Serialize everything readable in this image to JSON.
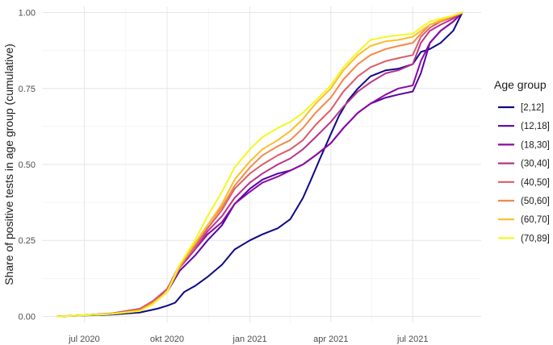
{
  "chart_data": {
    "type": "line",
    "title": "",
    "xlabel": "",
    "ylabel": "Share of positive tests in age group (cumulative)",
    "x_axis": {
      "type": "date",
      "range": [
        "2020-05-15",
        "2021-09-15"
      ],
      "ticks": [
        {
          "date": "2020-07-01",
          "label": "jul 2020"
        },
        {
          "date": "2020-10-01",
          "label": "okt 2020"
        },
        {
          "date": "2021-01-01",
          "label": "jan 2021"
        },
        {
          "date": "2021-04-01",
          "label": "apr 2021"
        },
        {
          "date": "2021-07-01",
          "label": "jul 2021"
        }
      ]
    },
    "y_axis": {
      "range": [
        -0.02,
        1.02
      ],
      "ticks": [
        {
          "value": 0,
          "label": "0.00"
        },
        {
          "value": 0.25,
          "label": "0.25"
        },
        {
          "value": 0.5,
          "label": "0.50"
        },
        {
          "value": 0.75,
          "label": "0.75"
        },
        {
          "value": 1,
          "label": "1.00"
        }
      ]
    },
    "grid": true,
    "legend": {
      "title": "Age group",
      "position": "right"
    },
    "series": [
      {
        "name": "[2,12]",
        "color": "#0d0887",
        "points": [
          [
            "2020-06-01",
            0
          ],
          [
            "2020-07-01",
            0.003
          ],
          [
            "2020-08-01",
            0.006
          ],
          [
            "2020-09-01",
            0.013
          ],
          [
            "2020-09-20",
            0.025
          ],
          [
            "2020-10-01",
            0.035
          ],
          [
            "2020-10-10",
            0.045
          ],
          [
            "2020-10-20",
            0.08
          ],
          [
            "2020-11-01",
            0.1
          ],
          [
            "2020-11-15",
            0.13
          ],
          [
            "2020-12-01",
            0.17
          ],
          [
            "2020-12-15",
            0.22
          ],
          [
            "2021-01-01",
            0.25
          ],
          [
            "2021-01-15",
            0.27
          ],
          [
            "2021-02-01",
            0.29
          ],
          [
            "2021-02-15",
            0.32
          ],
          [
            "2021-03-01",
            0.39
          ],
          [
            "2021-03-10",
            0.45
          ],
          [
            "2021-03-20",
            0.52
          ],
          [
            "2021-04-01",
            0.6
          ],
          [
            "2021-04-10",
            0.66
          ],
          [
            "2021-04-20",
            0.71
          ],
          [
            "2021-05-01",
            0.75
          ],
          [
            "2021-05-15",
            0.79
          ],
          [
            "2021-06-01",
            0.81
          ],
          [
            "2021-06-15",
            0.815
          ],
          [
            "2021-07-01",
            0.83
          ],
          [
            "2021-07-10",
            0.87
          ],
          [
            "2021-07-20",
            0.88
          ],
          [
            "2021-08-01",
            0.9
          ],
          [
            "2021-08-15",
            0.94
          ],
          [
            "2021-08-25",
            1
          ]
        ]
      },
      {
        "name": "(12,18]",
        "color": "#5502a3",
        "points": [
          [
            "2020-06-01",
            0
          ],
          [
            "2020-07-01",
            0.004
          ],
          [
            "2020-08-01",
            0.008
          ],
          [
            "2020-09-01",
            0.02
          ],
          [
            "2020-09-15",
            0.04
          ],
          [
            "2020-10-01",
            0.08
          ],
          [
            "2020-10-15",
            0.15
          ],
          [
            "2020-11-01",
            0.2
          ],
          [
            "2020-11-15",
            0.25
          ],
          [
            "2020-12-01",
            0.3
          ],
          [
            "2020-12-15",
            0.37
          ],
          [
            "2021-01-01",
            0.42
          ],
          [
            "2021-01-15",
            0.45
          ],
          [
            "2021-02-01",
            0.47
          ],
          [
            "2021-02-15",
            0.48
          ],
          [
            "2021-03-01",
            0.5
          ],
          [
            "2021-03-15",
            0.53
          ],
          [
            "2021-04-01",
            0.57
          ],
          [
            "2021-04-15",
            0.62
          ],
          [
            "2021-05-01",
            0.67
          ],
          [
            "2021-05-15",
            0.7
          ],
          [
            "2021-06-01",
            0.72
          ],
          [
            "2021-06-15",
            0.73
          ],
          [
            "2021-07-01",
            0.74
          ],
          [
            "2021-07-10",
            0.8
          ],
          [
            "2021-07-20",
            0.9
          ],
          [
            "2021-08-01",
            0.94
          ],
          [
            "2021-08-15",
            0.97
          ],
          [
            "2021-08-25",
            1
          ]
        ]
      },
      {
        "name": "(18,30]",
        "color": "#8a09a5",
        "points": [
          [
            "2020-06-01",
            0
          ],
          [
            "2020-07-01",
            0.004
          ],
          [
            "2020-08-01",
            0.009
          ],
          [
            "2020-09-01",
            0.022
          ],
          [
            "2020-09-15",
            0.045
          ],
          [
            "2020-10-01",
            0.09
          ],
          [
            "2020-10-15",
            0.16
          ],
          [
            "2020-11-01",
            0.22
          ],
          [
            "2020-11-15",
            0.27
          ],
          [
            "2020-12-01",
            0.31
          ],
          [
            "2020-12-15",
            0.37
          ],
          [
            "2021-01-01",
            0.41
          ],
          [
            "2021-01-15",
            0.44
          ],
          [
            "2021-02-01",
            0.46
          ],
          [
            "2021-02-15",
            0.48
          ],
          [
            "2021-03-01",
            0.5
          ],
          [
            "2021-03-15",
            0.53
          ],
          [
            "2021-04-01",
            0.57
          ],
          [
            "2021-04-15",
            0.62
          ],
          [
            "2021-05-01",
            0.67
          ],
          [
            "2021-05-15",
            0.7
          ],
          [
            "2021-06-01",
            0.73
          ],
          [
            "2021-06-15",
            0.75
          ],
          [
            "2021-07-01",
            0.76
          ],
          [
            "2021-07-10",
            0.84
          ],
          [
            "2021-07-20",
            0.9
          ],
          [
            "2021-08-01",
            0.94
          ],
          [
            "2021-08-15",
            0.97
          ],
          [
            "2021-08-25",
            1
          ]
        ]
      },
      {
        "name": "(30,40]",
        "color": "#b93289",
        "points": [
          [
            "2020-06-01",
            0
          ],
          [
            "2020-07-01",
            0.004
          ],
          [
            "2020-08-01",
            0.01
          ],
          [
            "2020-09-01",
            0.025
          ],
          [
            "2020-09-15",
            0.05
          ],
          [
            "2020-10-01",
            0.09
          ],
          [
            "2020-10-15",
            0.16
          ],
          [
            "2020-11-01",
            0.22
          ],
          [
            "2020-11-15",
            0.28
          ],
          [
            "2020-12-01",
            0.33
          ],
          [
            "2020-12-15",
            0.39
          ],
          [
            "2021-01-01",
            0.44
          ],
          [
            "2021-01-15",
            0.47
          ],
          [
            "2021-02-01",
            0.5
          ],
          [
            "2021-02-15",
            0.52
          ],
          [
            "2021-03-01",
            0.55
          ],
          [
            "2021-03-15",
            0.59
          ],
          [
            "2021-04-01",
            0.64
          ],
          [
            "2021-04-15",
            0.69
          ],
          [
            "2021-05-01",
            0.74
          ],
          [
            "2021-05-15",
            0.77
          ],
          [
            "2021-06-01",
            0.8
          ],
          [
            "2021-06-15",
            0.81
          ],
          [
            "2021-07-01",
            0.83
          ],
          [
            "2021-07-10",
            0.9
          ],
          [
            "2021-07-20",
            0.94
          ],
          [
            "2021-08-01",
            0.96
          ],
          [
            "2021-08-15",
            0.98
          ],
          [
            "2021-08-25",
            1
          ]
        ]
      },
      {
        "name": "(40,50]",
        "color": "#db5c68",
        "points": [
          [
            "2020-06-01",
            0
          ],
          [
            "2020-07-01",
            0.004
          ],
          [
            "2020-08-01",
            0.01
          ],
          [
            "2020-09-01",
            0.025
          ],
          [
            "2020-09-15",
            0.05
          ],
          [
            "2020-10-01",
            0.09
          ],
          [
            "2020-10-15",
            0.17
          ],
          [
            "2020-11-01",
            0.23
          ],
          [
            "2020-11-15",
            0.29
          ],
          [
            "2020-12-01",
            0.35
          ],
          [
            "2020-12-15",
            0.42
          ],
          [
            "2021-01-01",
            0.47
          ],
          [
            "2021-01-15",
            0.5
          ],
          [
            "2021-02-01",
            0.53
          ],
          [
            "2021-02-15",
            0.55
          ],
          [
            "2021-03-01",
            0.58
          ],
          [
            "2021-03-15",
            0.63
          ],
          [
            "2021-04-01",
            0.68
          ],
          [
            "2021-04-15",
            0.74
          ],
          [
            "2021-05-01",
            0.79
          ],
          [
            "2021-05-15",
            0.82
          ],
          [
            "2021-06-01",
            0.84
          ],
          [
            "2021-06-15",
            0.85
          ],
          [
            "2021-07-01",
            0.86
          ],
          [
            "2021-07-10",
            0.92
          ],
          [
            "2021-07-20",
            0.95
          ],
          [
            "2021-08-01",
            0.97
          ],
          [
            "2021-08-15",
            0.985
          ],
          [
            "2021-08-25",
            1
          ]
        ]
      },
      {
        "name": "(50,60]",
        "color": "#f48849",
        "points": [
          [
            "2020-06-01",
            0
          ],
          [
            "2020-07-01",
            0.004
          ],
          [
            "2020-08-01",
            0.008
          ],
          [
            "2020-09-01",
            0.02
          ],
          [
            "2020-09-15",
            0.045
          ],
          [
            "2020-10-01",
            0.08
          ],
          [
            "2020-10-15",
            0.16
          ],
          [
            "2020-11-01",
            0.24
          ],
          [
            "2020-11-15",
            0.3
          ],
          [
            "2020-12-01",
            0.36
          ],
          [
            "2020-12-15",
            0.43
          ],
          [
            "2021-01-01",
            0.49
          ],
          [
            "2021-01-15",
            0.53
          ],
          [
            "2021-02-01",
            0.56
          ],
          [
            "2021-02-15",
            0.58
          ],
          [
            "2021-03-01",
            0.62
          ],
          [
            "2021-03-15",
            0.67
          ],
          [
            "2021-04-01",
            0.72
          ],
          [
            "2021-04-15",
            0.78
          ],
          [
            "2021-05-01",
            0.83
          ],
          [
            "2021-05-15",
            0.86
          ],
          [
            "2021-06-01",
            0.88
          ],
          [
            "2021-06-15",
            0.89
          ],
          [
            "2021-07-01",
            0.9
          ],
          [
            "2021-07-10",
            0.93
          ],
          [
            "2021-07-20",
            0.96
          ],
          [
            "2021-08-01",
            0.97
          ],
          [
            "2021-08-15",
            0.99
          ],
          [
            "2021-08-25",
            1
          ]
        ]
      },
      {
        "name": "(60,70]",
        "color": "#febc2a",
        "points": [
          [
            "2020-06-01",
            0
          ],
          [
            "2020-07-01",
            0.004
          ],
          [
            "2020-08-01",
            0.008
          ],
          [
            "2020-09-01",
            0.018
          ],
          [
            "2020-09-15",
            0.04
          ],
          [
            "2020-10-01",
            0.08
          ],
          [
            "2020-10-15",
            0.17
          ],
          [
            "2020-11-01",
            0.24
          ],
          [
            "2020-11-15",
            0.3
          ],
          [
            "2020-12-01",
            0.37
          ],
          [
            "2020-12-15",
            0.45
          ],
          [
            "2021-01-01",
            0.51
          ],
          [
            "2021-01-15",
            0.55
          ],
          [
            "2021-02-01",
            0.58
          ],
          [
            "2021-02-15",
            0.61
          ],
          [
            "2021-03-01",
            0.65
          ],
          [
            "2021-03-15",
            0.7
          ],
          [
            "2021-04-01",
            0.75
          ],
          [
            "2021-04-15",
            0.81
          ],
          [
            "2021-05-01",
            0.86
          ],
          [
            "2021-05-15",
            0.89
          ],
          [
            "2021-06-01",
            0.905
          ],
          [
            "2021-06-15",
            0.91
          ],
          [
            "2021-07-01",
            0.92
          ],
          [
            "2021-07-10",
            0.94
          ],
          [
            "2021-07-20",
            0.96
          ],
          [
            "2021-08-01",
            0.975
          ],
          [
            "2021-08-15",
            0.99
          ],
          [
            "2021-08-25",
            1
          ]
        ]
      },
      {
        "name": "(70,89]",
        "color": "#f0f921",
        "points": [
          [
            "2020-06-01",
            0
          ],
          [
            "2020-07-01",
            0.004
          ],
          [
            "2020-08-01",
            0.008
          ],
          [
            "2020-09-01",
            0.018
          ],
          [
            "2020-09-15",
            0.04
          ],
          [
            "2020-10-01",
            0.08
          ],
          [
            "2020-10-15",
            0.17
          ],
          [
            "2020-11-01",
            0.25
          ],
          [
            "2020-11-15",
            0.33
          ],
          [
            "2020-12-01",
            0.41
          ],
          [
            "2020-12-15",
            0.49
          ],
          [
            "2021-01-01",
            0.55
          ],
          [
            "2021-01-15",
            0.59
          ],
          [
            "2021-02-01",
            0.62
          ],
          [
            "2021-02-15",
            0.64
          ],
          [
            "2021-03-01",
            0.67
          ],
          [
            "2021-03-15",
            0.71
          ],
          [
            "2021-04-01",
            0.76
          ],
          [
            "2021-04-15",
            0.82
          ],
          [
            "2021-05-01",
            0.87
          ],
          [
            "2021-05-15",
            0.91
          ],
          [
            "2021-06-01",
            0.92
          ],
          [
            "2021-06-15",
            0.925
          ],
          [
            "2021-07-01",
            0.93
          ],
          [
            "2021-07-10",
            0.95
          ],
          [
            "2021-07-20",
            0.97
          ],
          [
            "2021-08-01",
            0.98
          ],
          [
            "2021-08-15",
            0.99
          ],
          [
            "2021-08-25",
            1
          ]
        ]
      }
    ]
  }
}
